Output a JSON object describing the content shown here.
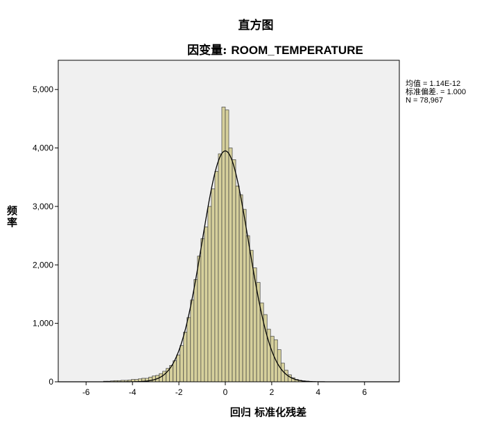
{
  "title": "直方图",
  "subtitle_prefix": "因变量: ",
  "subtitle_var": "ROOM_TEMPERATURE",
  "stats": {
    "mean": "均值 = 1.14E-12",
    "sd": "标准偏差. = 1.000",
    "n": "N = 78,967"
  },
  "colors": {
    "bar_fill": "#d6d09c",
    "bar_stroke": "#3f3f3f",
    "plot_bg": "#f0f0f0",
    "curve": "#000000"
  },
  "chart_data": {
    "type": "bar",
    "title": "直方图",
    "subtitle": "因变量: ROOM_TEMPERATURE",
    "xlabel": "回归 标准化残差",
    "ylabel": "频率",
    "xlim": [
      -7.2,
      7.5
    ],
    "ylim": [
      0,
      5500
    ],
    "xticks": [
      -6,
      -4,
      -2,
      0,
      2,
      4,
      6
    ],
    "xtick_labels": [
      "-6",
      "-4",
      "-2",
      "0",
      "2",
      "4",
      "6"
    ],
    "yticks": [
      0,
      1000,
      2000,
      3000,
      4000,
      5000
    ],
    "ytick_labels": [
      "0",
      "1,000",
      "2,000",
      "3,000",
      "4,000",
      "5,000"
    ],
    "bin_width": 0.15,
    "bins": [
      [
        -5.25,
        10
      ],
      [
        -5.1,
        10
      ],
      [
        -4.95,
        15
      ],
      [
        -4.8,
        20
      ],
      [
        -4.65,
        20
      ],
      [
        -4.5,
        25
      ],
      [
        -4.35,
        25
      ],
      [
        -4.2,
        30
      ],
      [
        -4.05,
        40
      ],
      [
        -3.9,
        40
      ],
      [
        -3.75,
        50
      ],
      [
        -3.6,
        60
      ],
      [
        -3.45,
        60
      ],
      [
        -3.3,
        80
      ],
      [
        -3.15,
        100
      ],
      [
        -3.0,
        110
      ],
      [
        -2.85,
        140
      ],
      [
        -2.7,
        180
      ],
      [
        -2.55,
        230
      ],
      [
        -2.4,
        280
      ],
      [
        -2.25,
        360
      ],
      [
        -2.1,
        460
      ],
      [
        -1.95,
        620
      ],
      [
        -1.8,
        850
      ],
      [
        -1.65,
        1100
      ],
      [
        -1.5,
        1400
      ],
      [
        -1.35,
        1750
      ],
      [
        -1.2,
        2150
      ],
      [
        -1.05,
        2450
      ],
      [
        -0.9,
        2650
      ],
      [
        -0.75,
        3000
      ],
      [
        -0.6,
        3300
      ],
      [
        -0.45,
        3600
      ],
      [
        -0.3,
        3900
      ],
      [
        -0.15,
        4700
      ],
      [
        0.0,
        4650
      ],
      [
        0.15,
        4000
      ],
      [
        0.3,
        3800
      ],
      [
        0.45,
        3350
      ],
      [
        0.6,
        3200
      ],
      [
        0.75,
        2950
      ],
      [
        0.9,
        2500
      ],
      [
        1.05,
        2250
      ],
      [
        1.2,
        1950
      ],
      [
        1.35,
        1700
      ],
      [
        1.5,
        1350
      ],
      [
        1.65,
        1150
      ],
      [
        1.8,
        900
      ],
      [
        1.95,
        780
      ],
      [
        2.1,
        720
      ],
      [
        2.25,
        550
      ],
      [
        2.4,
        320
      ],
      [
        2.55,
        200
      ],
      [
        2.7,
        120
      ],
      [
        2.85,
        70
      ],
      [
        3.0,
        40
      ],
      [
        3.15,
        25
      ],
      [
        3.3,
        15
      ],
      [
        3.45,
        10
      ]
    ],
    "curve": {
      "type": "normal",
      "mean": 0,
      "sd": 1.0,
      "peak": 3950
    },
    "grid": false
  }
}
